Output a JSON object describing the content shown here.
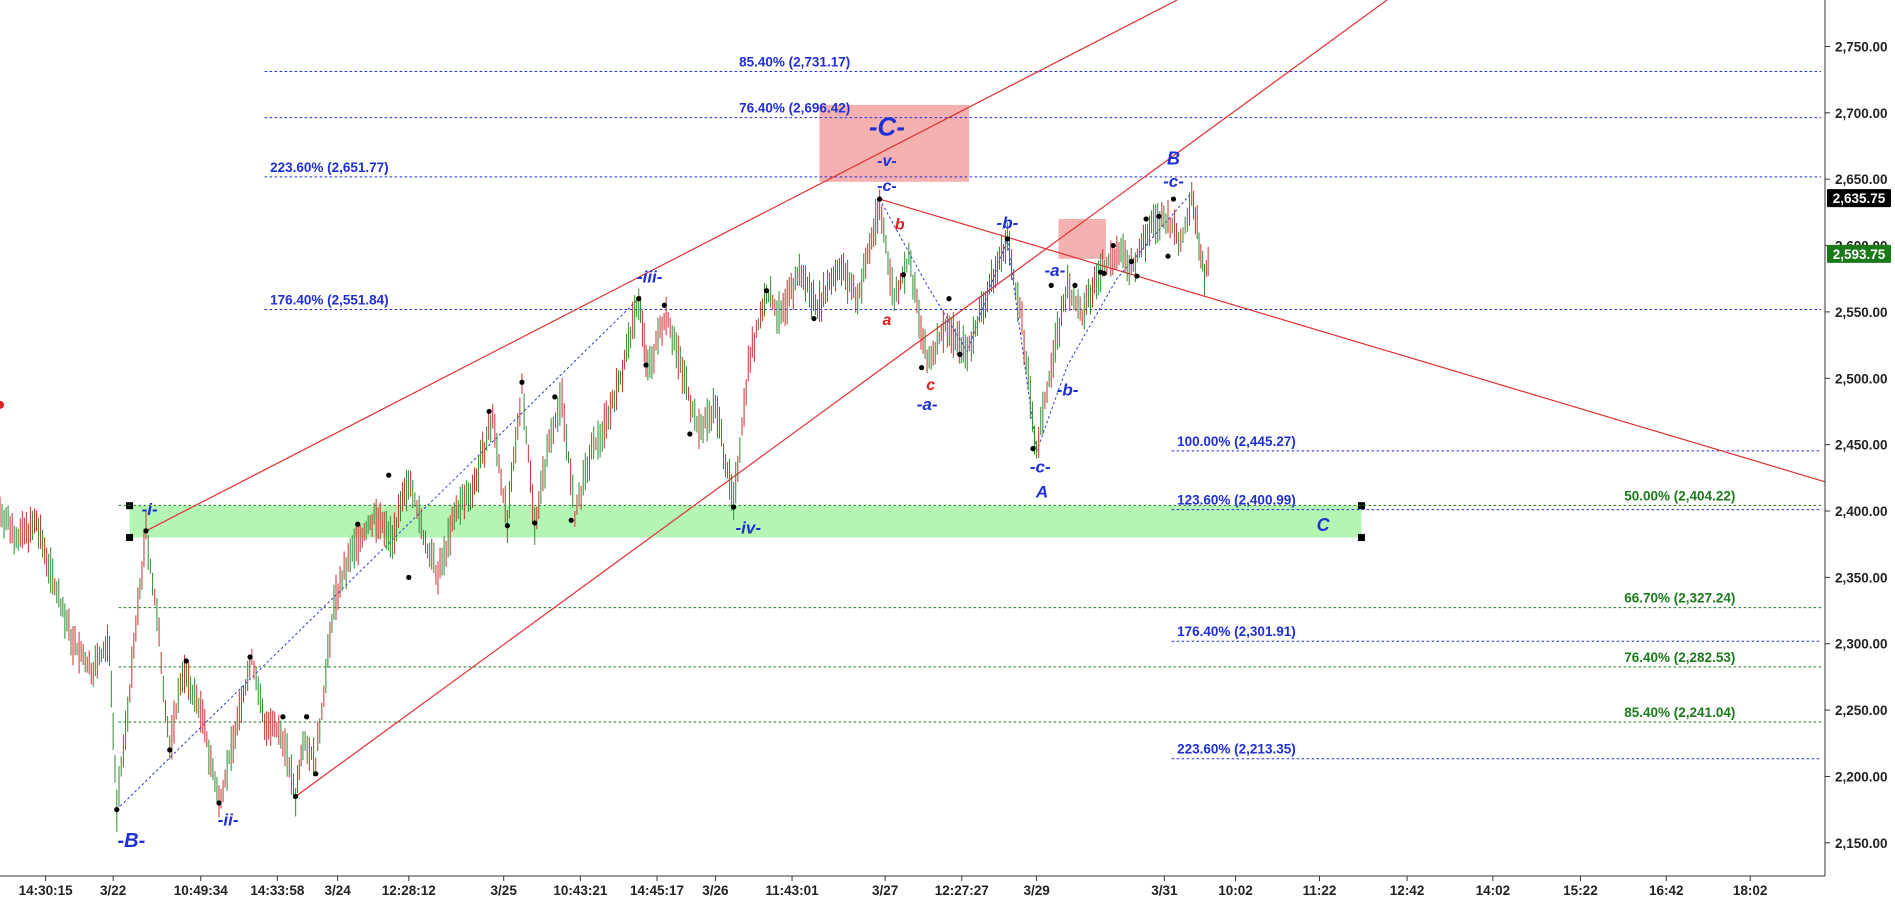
{
  "chart_data": {
    "type": "candlestick",
    "y_axis": {
      "ylim": [
        2125,
        2785
      ],
      "ticks": [
        2150,
        2200,
        2250,
        2300,
        2350,
        2400,
        2450,
        2500,
        2550,
        2600,
        2650,
        2700,
        2750
      ],
      "tick_labels": [
        "2,150.00",
        "2,200.00",
        "2,250.00",
        "2,300.00",
        "2,350.00",
        "2,400.00",
        "2,450.00",
        "2,500.00",
        "2,550.00",
        "2,600.00",
        "2,650.00",
        "2,700.00",
        "2,750.00"
      ]
    },
    "x_axis": {
      "xlim": [
        0,
        100
      ],
      "ticks": [
        {
          "x": 2.5,
          "label": "14:30:15"
        },
        {
          "x": 6.2,
          "label": "3/22"
        },
        {
          "x": 11.0,
          "label": "10:49:34"
        },
        {
          "x": 15.2,
          "label": "14:33:58"
        },
        {
          "x": 18.5,
          "label": "3/24"
        },
        {
          "x": 22.4,
          "label": "12:28:12"
        },
        {
          "x": 27.6,
          "label": "3/25"
        },
        {
          "x": 31.8,
          "label": "10:43:21"
        },
        {
          "x": 36.0,
          "label": "14:45:17"
        },
        {
          "x": 39.2,
          "label": "3/26"
        },
        {
          "x": 43.4,
          "label": "11:43:01"
        },
        {
          "x": 48.5,
          "label": "3/27"
        },
        {
          "x": 52.7,
          "label": "12:27:27"
        },
        {
          "x": 56.8,
          "label": "3/29"
        },
        {
          "x": 63.8,
          "label": "3/31"
        },
        {
          "x": 67.7,
          "label": "10:02"
        },
        {
          "x": 72.3,
          "label": "11:22"
        },
        {
          "x": 77.1,
          "label": "12:42"
        },
        {
          "x": 81.8,
          "label": "14:02"
        },
        {
          "x": 86.6,
          "label": "15:22"
        },
        {
          "x": 91.3,
          "label": "16:42"
        },
        {
          "x": 95.9,
          "label": "18:02"
        }
      ]
    },
    "price_badges": [
      {
        "value": 2635.75,
        "label": "2,635.75",
        "color": "#000000"
      },
      {
        "value": 2593.75,
        "label": "2,593.75",
        "color": "#1a7a1a"
      }
    ],
    "price_path": [
      [
        0,
        2400
      ],
      [
        1,
        2380
      ],
      [
        2,
        2390
      ],
      [
        3,
        2345
      ],
      [
        4,
        2300
      ],
      [
        5,
        2280
      ],
      [
        6,
        2300
      ],
      [
        6.4,
        2175
      ],
      [
        7,
        2250
      ],
      [
        8,
        2385
      ],
      [
        8.6,
        2320
      ],
      [
        9.3,
        2220
      ],
      [
        10,
        2280
      ],
      [
        11,
        2250
      ],
      [
        12,
        2180
      ],
      [
        13,
        2240
      ],
      [
        13.8,
        2290
      ],
      [
        14.5,
        2240
      ],
      [
        15.5,
        2230
      ],
      [
        16.2,
        2185
      ],
      [
        16.6,
        2230
      ],
      [
        17.3,
        2210
      ],
      [
        18.3,
        2330
      ],
      [
        19.3,
        2370
      ],
      [
        20.5,
        2395
      ],
      [
        21.5,
        2380
      ],
      [
        22.5,
        2425
      ],
      [
        23.2,
        2380
      ],
      [
        24,
        2350
      ],
      [
        25,
        2400
      ],
      [
        26,
        2420
      ],
      [
        27,
        2470
      ],
      [
        27.8,
        2390
      ],
      [
        28.6,
        2495
      ],
      [
        29.3,
        2390
      ],
      [
        30.2,
        2460
      ],
      [
        30.8,
        2485
      ],
      [
        31.5,
        2395
      ],
      [
        32.3,
        2440
      ],
      [
        33,
        2460
      ],
      [
        34,
        2500
      ],
      [
        35,
        2560
      ],
      [
        35.5,
        2505
      ],
      [
        36.5,
        2550
      ],
      [
        37.5,
        2500
      ],
      [
        38.3,
        2460
      ],
      [
        39.2,
        2480
      ],
      [
        40.2,
        2405
      ],
      [
        41,
        2510
      ],
      [
        42,
        2565
      ],
      [
        42.8,
        2545
      ],
      [
        43.8,
        2580
      ],
      [
        44.8,
        2555
      ],
      [
        46,
        2585
      ],
      [
        47,
        2560
      ],
      [
        48.2,
        2630
      ],
      [
        49,
        2560
      ],
      [
        49.8,
        2590
      ],
      [
        50.8,
        2510
      ],
      [
        51.8,
        2540
      ],
      [
        53,
        2520
      ],
      [
        54,
        2560
      ],
      [
        55.2,
        2605
      ],
      [
        56,
        2540
      ],
      [
        56.8,
        2445
      ],
      [
        57.6,
        2510
      ],
      [
        58.5,
        2570
      ],
      [
        59.3,
        2545
      ],
      [
        60.2,
        2580
      ],
      [
        61.2,
        2595
      ],
      [
        62.1,
        2585
      ],
      [
        63.1,
        2615
      ],
      [
        64,
        2620
      ],
      [
        64.7,
        2600
      ],
      [
        65.3,
        2640
      ],
      [
        65.7,
        2605
      ],
      [
        66,
        2580
      ],
      [
        66.3,
        2590
      ]
    ],
    "fib_levels": [
      {
        "label": "85.40% (2,731.17)",
        "value": 2731.17,
        "color": "#1f2fd6",
        "x_start": 14.5,
        "label_x": 40.5
      },
      {
        "label": "76.40% (2,696.42)",
        "value": 2696.42,
        "color": "#1f2fd6",
        "x_start": 14.5,
        "label_x": 40.5
      },
      {
        "label": "223.60% (2,651.77)",
        "value": 2651.77,
        "color": "#1f2fd6",
        "x_start": 14.5,
        "label_x": 14.8
      },
      {
        "label": "176.40% (2,551.84)",
        "value": 2551.84,
        "color": "#1f2fd6",
        "x_start": 14.5,
        "label_x": 14.8
      },
      {
        "label": "100.00% (2,445.27)",
        "value": 2445.27,
        "color": "#1f2fd6",
        "x_start": 64.2,
        "label_x": 64.5
      },
      {
        "label": "123.60% (2,400.99)",
        "value": 2400.99,
        "color": "#1f2fd6",
        "x_start": 64.2,
        "label_x": 64.5
      },
      {
        "label": "50.00% (2,404.22)",
        "value": 2404.22,
        "color": "#1b7a1b",
        "x_start": 6.5,
        "label_x": 89.0,
        "align": "right-side"
      },
      {
        "label": "176.40% (2,301.91)",
        "value": 2301.91,
        "color": "#1f2fd6",
        "x_start": 64.2,
        "label_x": 64.5
      },
      {
        "label": "66.70% (2,327.24)",
        "value": 2327.24,
        "color": "#1b7a1b",
        "x_start": 6.5,
        "label_x": 89.0
      },
      {
        "label": "76.40% (2,282.53)",
        "value": 2282.53,
        "color": "#1b7a1b",
        "x_start": 6.5,
        "label_x": 89.0
      },
      {
        "label": "85.40% (2,241.04)",
        "value": 2241.04,
        "color": "#1b7a1b",
        "x_start": 6.5,
        "label_x": 89.0
      },
      {
        "label": "223.60% (2,213.35)",
        "value": 2213.35,
        "color": "#1f2fd6",
        "x_start": 64.2,
        "label_x": 64.5
      }
    ],
    "zones": [
      {
        "name": "target-zone-green",
        "x1": 7.1,
        "x2": 74.6,
        "y1": 2404,
        "y2": 2380,
        "color": "#b4f5b4"
      },
      {
        "name": "target-zone-red-main",
        "x1": 44.9,
        "x2": 53.1,
        "y1": 2706,
        "y2": 2648,
        "color": "#f5b0b0"
      },
      {
        "name": "target-zone-red-small",
        "x1": 58.0,
        "x2": 60.6,
        "y1": 2620,
        "y2": 2590,
        "color": "#f5b0b0"
      }
    ],
    "trend_lines": [
      {
        "x1": 8.0,
        "y1": 2385,
        "x2": 64.5,
        "y2": 2785,
        "color": "#e03030"
      },
      {
        "x1": 16.2,
        "y1": 2185,
        "x2": 76.0,
        "y2": 2785,
        "color": "#e03030"
      },
      {
        "x1": 48.2,
        "y1": 2635,
        "x2": 100.0,
        "y2": 2422,
        "color": "#e03030"
      }
    ],
    "dotted_lines": [
      {
        "points": [
          [
            6.4,
            2175
          ],
          [
            35.0,
            2560
          ]
        ]
      },
      {
        "points": [
          [
            48.2,
            2635
          ],
          [
            50.8,
            2570
          ],
          [
            53,
            2520
          ],
          [
            55.2,
            2605
          ],
          [
            56.8,
            2445
          ],
          [
            58.5,
            2510
          ],
          [
            61.2,
            2575
          ],
          [
            65.3,
            2640
          ]
        ]
      }
    ],
    "pivots": [
      [
        6.4,
        2175
      ],
      [
        8.0,
        2385
      ],
      [
        9.3,
        2220
      ],
      [
        10.2,
        2287
      ],
      [
        12.0,
        2180
      ],
      [
        13.7,
        2290
      ],
      [
        15.5,
        2245
      ],
      [
        16.2,
        2185
      ],
      [
        16.8,
        2245
      ],
      [
        17.3,
        2202
      ],
      [
        19.6,
        2390
      ],
      [
        21.3,
        2427
      ],
      [
        22.4,
        2350
      ],
      [
        26.8,
        2475
      ],
      [
        27.8,
        2389
      ],
      [
        28.6,
        2497
      ],
      [
        29.3,
        2391
      ],
      [
        30.4,
        2486
      ],
      [
        31.3,
        2393
      ],
      [
        35.0,
        2560
      ],
      [
        35.4,
        2510
      ],
      [
        36.4,
        2555
      ],
      [
        37.8,
        2458
      ],
      [
        40.2,
        2403
      ],
      [
        42.0,
        2566
      ],
      [
        44.6,
        2545
      ],
      [
        48.2,
        2635
      ],
      [
        49.5,
        2578
      ],
      [
        50.5,
        2508
      ],
      [
        52.0,
        2560
      ],
      [
        52.6,
        2518
      ],
      [
        55.2,
        2605
      ],
      [
        56.6,
        2447
      ],
      [
        57.6,
        2570
      ],
      [
        58.9,
        2570
      ],
      [
        60.3,
        2580
      ],
      [
        61.0,
        2600
      ],
      [
        62.0,
        2588
      ],
      [
        62.8,
        2620
      ],
      [
        63.5,
        2622
      ],
      [
        64.3,
        2635
      ],
      [
        64.0,
        2592
      ],
      [
        62.3,
        2577
      ],
      [
        60.5,
        2579
      ]
    ],
    "wave_labels": [
      {
        "text": "-C-",
        "x": 48.6,
        "y": 2683,
        "color": "#1f2fd6",
        "size": 26
      },
      {
        "text": "-v-",
        "x": 48.6,
        "y": 2660,
        "color": "#1f2fd6",
        "size": 16
      },
      {
        "text": "-c-",
        "x": 48.6,
        "y": 2641,
        "color": "#1f2fd6",
        "size": 16
      },
      {
        "text": "-i-",
        "x": 8.2,
        "y": 2397,
        "color": "#1f2fd6",
        "size": 17
      },
      {
        "text": "-ii-",
        "x": 12.5,
        "y": 2163,
        "color": "#1f2fd6",
        "size": 17
      },
      {
        "text": "-iii-",
        "x": 35.6,
        "y": 2572,
        "color": "#1f2fd6",
        "size": 17
      },
      {
        "text": "-iv-",
        "x": 41.0,
        "y": 2383,
        "color": "#1f2fd6",
        "size": 17
      },
      {
        "text": "-B-",
        "x": 7.2,
        "y": 2147,
        "color": "#1f2fd6",
        "size": 20
      },
      {
        "text": "b",
        "x": 49.3,
        "y": 2612,
        "color": "#e02020",
        "size": 16
      },
      {
        "text": "a",
        "x": 48.6,
        "y": 2540,
        "color": "#e02020",
        "size": 16
      },
      {
        "text": "c",
        "x": 51.0,
        "y": 2491,
        "color": "#e02020",
        "size": 16
      },
      {
        "text": "-a-",
        "x": 50.8,
        "y": 2476,
        "color": "#1f2fd6",
        "size": 17
      },
      {
        "text": "-b-",
        "x": 55.2,
        "y": 2613,
        "color": "#1f2fd6",
        "size": 17
      },
      {
        "text": "-c-",
        "x": 57.0,
        "y": 2429,
        "color": "#1f2fd6",
        "size": 17
      },
      {
        "text": "A",
        "x": 57.1,
        "y": 2410,
        "color": "#1f2fd6",
        "size": 17
      },
      {
        "text": "-a-",
        "x": 57.8,
        "y": 2577,
        "color": "#1f2fd6",
        "size": 17
      },
      {
        "text": "-b-",
        "x": 58.5,
        "y": 2487,
        "color": "#1f2fd6",
        "size": 17
      },
      {
        "text": "B",
        "x": 64.3,
        "y": 2661,
        "color": "#1f2fd6",
        "size": 18
      },
      {
        "text": "-c-",
        "x": 64.3,
        "y": 2644,
        "color": "#1f2fd6",
        "size": 17
      },
      {
        "text": "C",
        "x": 72.5,
        "y": 2385,
        "color": "#1f2fd6",
        "size": 18
      }
    ]
  }
}
